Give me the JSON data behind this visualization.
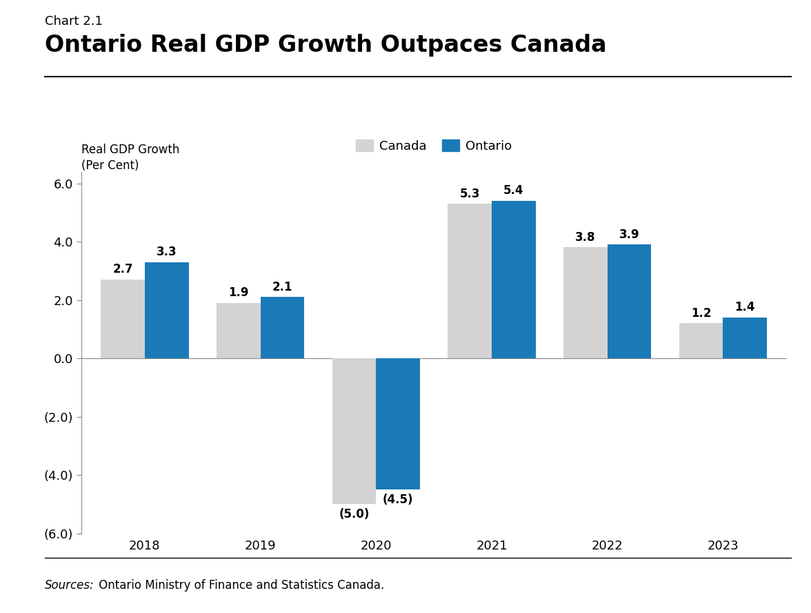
{
  "chart_label": "Chart 2.1",
  "title": "Ontario Real GDP Growth Outpaces Canada",
  "ylabel_line1": "Real GDP Growth",
  "ylabel_line2": "(Per Cent)",
  "years": [
    2018,
    2019,
    2020,
    2021,
    2022,
    2023
  ],
  "canada_values": [
    2.7,
    1.9,
    -5.0,
    5.3,
    3.8,
    1.2
  ],
  "ontario_values": [
    3.3,
    2.1,
    -4.5,
    5.4,
    3.9,
    1.4
  ],
  "canada_color": "#d3d3d3",
  "ontario_color": "#1a7ab8",
  "ylim_min": -6.0,
  "ylim_max": 6.4,
  "source_text_italic": "Sources:",
  "source_text_normal": " Ontario Ministry of Finance and Statistics Canada.",
  "legend_canada": "Canada",
  "legend_ontario": "Ontario",
  "background_color": "#ffffff",
  "bar_width": 0.38,
  "title_fontsize": 24,
  "chart_label_fontsize": 13,
  "axis_label_fontsize": 12,
  "tick_fontsize": 13,
  "bar_label_fontsize": 12,
  "source_fontsize": 12
}
